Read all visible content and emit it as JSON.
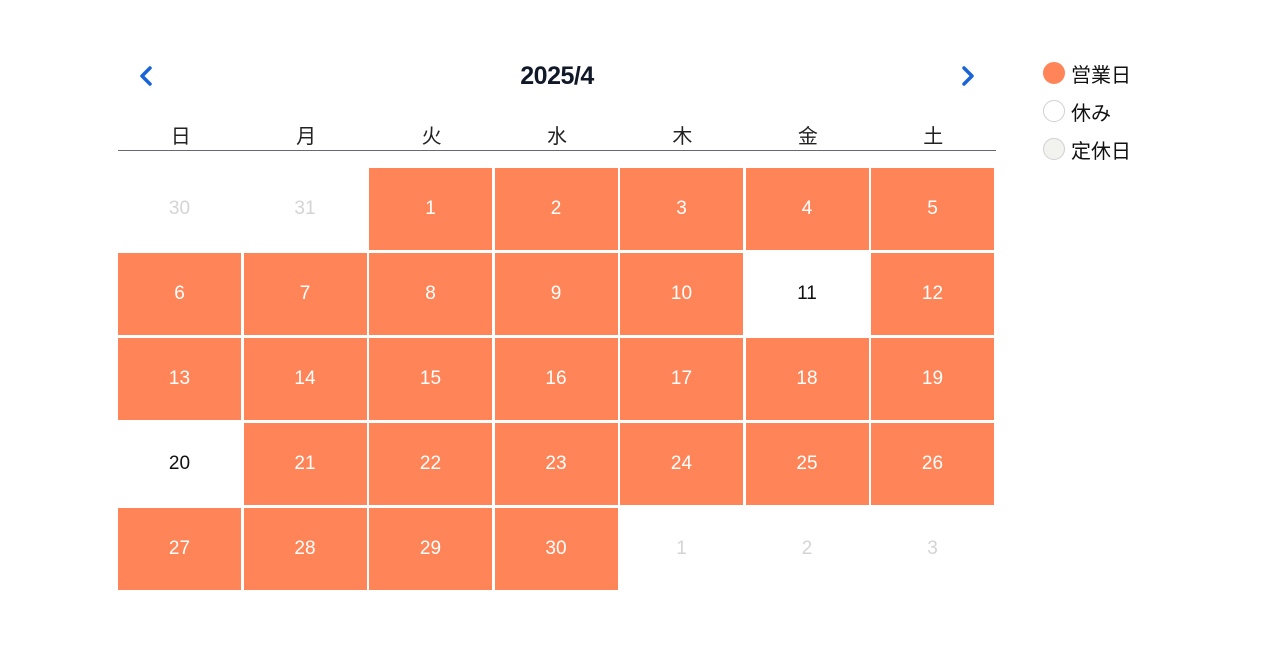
{
  "calendar": {
    "title": "2025/4",
    "prev_icon": "chevron-left-icon",
    "next_icon": "chevron-right-icon",
    "nav_color": "#1a63d8",
    "weekdays": [
      "日",
      "月",
      "火",
      "水",
      "木",
      "金",
      "土"
    ],
    "days": [
      {
        "label": "30",
        "status": "other"
      },
      {
        "label": "31",
        "status": "other"
      },
      {
        "label": "1",
        "status": "open"
      },
      {
        "label": "2",
        "status": "open"
      },
      {
        "label": "3",
        "status": "open"
      },
      {
        "label": "4",
        "status": "open"
      },
      {
        "label": "5",
        "status": "open"
      },
      {
        "label": "6",
        "status": "open"
      },
      {
        "label": "7",
        "status": "open"
      },
      {
        "label": "8",
        "status": "open"
      },
      {
        "label": "9",
        "status": "open"
      },
      {
        "label": "10",
        "status": "open"
      },
      {
        "label": "11",
        "status": "closed"
      },
      {
        "label": "12",
        "status": "open"
      },
      {
        "label": "13",
        "status": "open"
      },
      {
        "label": "14",
        "status": "open"
      },
      {
        "label": "15",
        "status": "open"
      },
      {
        "label": "16",
        "status": "open"
      },
      {
        "label": "17",
        "status": "open"
      },
      {
        "label": "18",
        "status": "open"
      },
      {
        "label": "19",
        "status": "open"
      },
      {
        "label": "20",
        "status": "closed"
      },
      {
        "label": "21",
        "status": "open"
      },
      {
        "label": "22",
        "status": "open"
      },
      {
        "label": "23",
        "status": "open"
      },
      {
        "label": "24",
        "status": "open"
      },
      {
        "label": "25",
        "status": "open"
      },
      {
        "label": "26",
        "status": "open"
      },
      {
        "label": "27",
        "status": "open"
      },
      {
        "label": "28",
        "status": "open"
      },
      {
        "label": "29",
        "status": "open"
      },
      {
        "label": "30",
        "status": "open"
      },
      {
        "label": "1",
        "status": "other"
      },
      {
        "label": "2",
        "status": "other"
      },
      {
        "label": "3",
        "status": "other"
      }
    ]
  },
  "legend": {
    "items": [
      {
        "label": "営業日",
        "fill": "#ff8558",
        "border": "#ff8558"
      },
      {
        "label": "休み",
        "fill": "#ffffff",
        "border": "#d0d0d0"
      },
      {
        "label": "定休日",
        "fill": "#f2f2ee",
        "border": "#d0d0d0"
      }
    ]
  },
  "colors": {
    "open": "#ff8558",
    "closed": "#ffffff",
    "other_text": "#d4d4d4"
  }
}
